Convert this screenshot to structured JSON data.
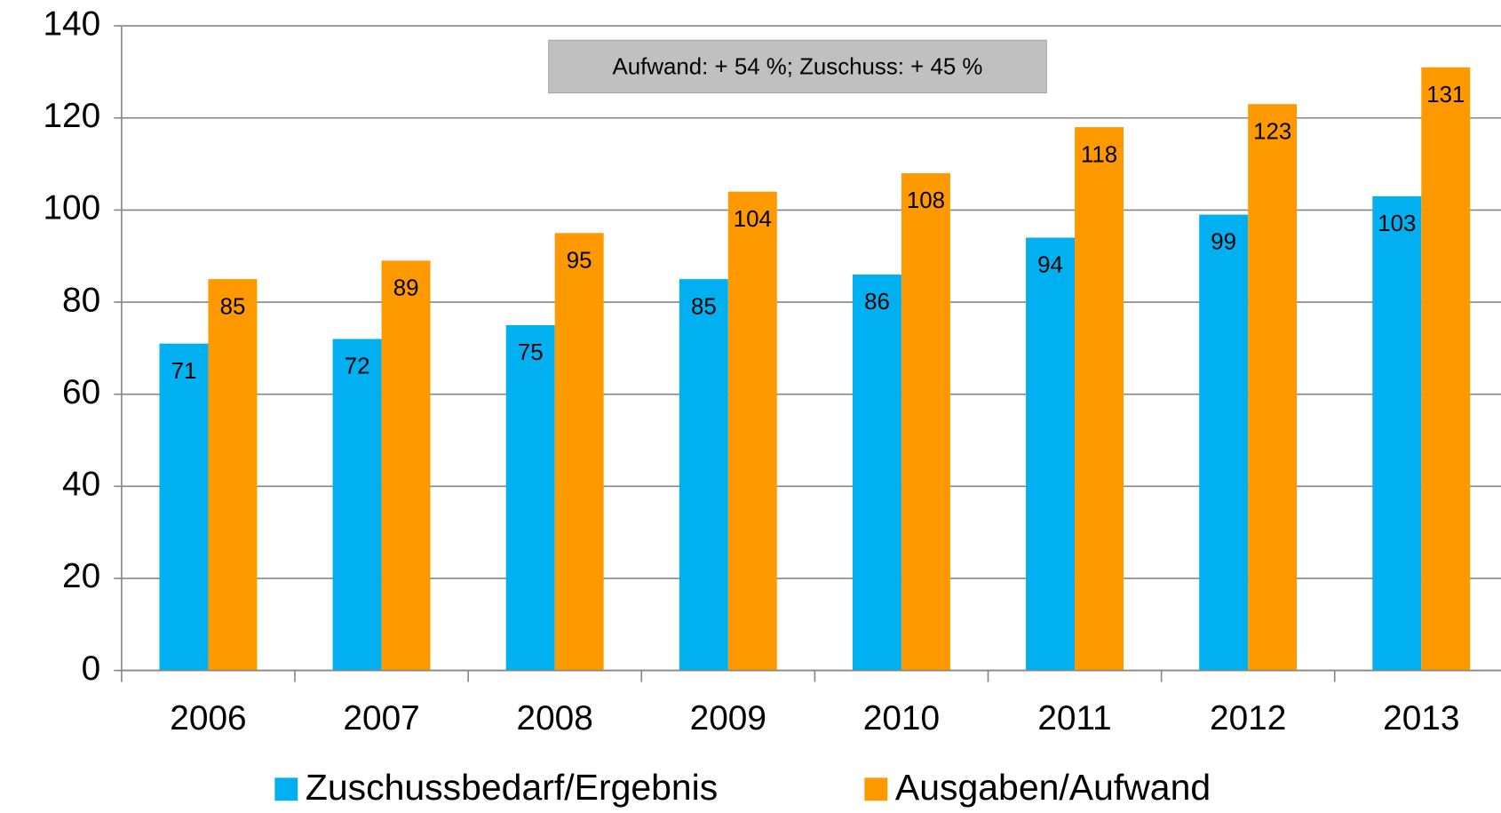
{
  "chart_data": {
    "type": "bar",
    "categories": [
      "2006",
      "2007",
      "2008",
      "2009",
      "2010",
      "2011",
      "2012",
      "2013"
    ],
    "series": [
      {
        "name": "Zuschussbedarf/Ergebnis",
        "color": "#00b0f0",
        "values": [
          71,
          72,
          75,
          85,
          86,
          94,
          99,
          103
        ]
      },
      {
        "name": "Ausgaben/Aufwand",
        "color": "#ff9900",
        "values": [
          85,
          89,
          95,
          104,
          108,
          118,
          123,
          131
        ]
      }
    ],
    "annotation": "Aufwand: + 54 %; Zuschuss: + 45 %",
    "ylim": [
      0,
      140
    ],
    "yticks": [
      0,
      20,
      40,
      60,
      80,
      100,
      120,
      140
    ],
    "grid": true,
    "legend": "bottom"
  }
}
